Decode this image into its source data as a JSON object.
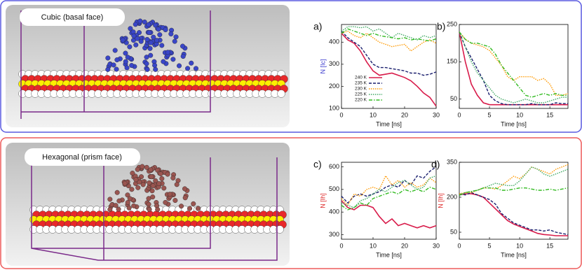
{
  "panels": [
    {
      "label": "Cubic (basal face)"
    },
    {
      "label": "Hexagonal (prism face)"
    }
  ],
  "chart_data": [
    {
      "type": "line",
      "label": "a)",
      "xlabel": "Time [ns]",
      "ylabel": "N [Ic]",
      "ylabel_color": "#3333cc",
      "x": [
        0,
        2,
        4,
        6,
        8,
        10,
        12,
        14,
        16,
        18,
        20,
        22,
        24,
        26,
        28,
        30
      ],
      "xlim": [
        0,
        30
      ],
      "xticks": [
        0,
        10,
        20,
        30
      ],
      "ylim": [
        100,
        480
      ],
      "yticks": [
        100,
        200,
        300,
        400
      ],
      "legend": true,
      "series": [
        {
          "name": "240 K",
          "color": "#d81b4a",
          "dash": "solid",
          "values": [
            440,
            410,
            395,
            360,
            310,
            270,
            250,
            255,
            260,
            250,
            240,
            225,
            200,
            170,
            150,
            110
          ]
        },
        {
          "name": "235 K",
          "color": "#1a1f6e",
          "dash": "dashed",
          "values": [
            450,
            420,
            400,
            380,
            340,
            300,
            285,
            285,
            280,
            275,
            270,
            260,
            260,
            250,
            255,
            265
          ]
        },
        {
          "name": "230 K",
          "color": "#ff9900",
          "dash": "dotted",
          "values": [
            440,
            450,
            430,
            420,
            440,
            420,
            400,
            390,
            380,
            385,
            390,
            360,
            380,
            400,
            410,
            395
          ]
        },
        {
          "name": "225 K",
          "color": "#44aa66",
          "dash": "dotted",
          "values": [
            450,
            470,
            470,
            465,
            470,
            450,
            460,
            440,
            420,
            440,
            430,
            420,
            410,
            430,
            420,
            430
          ]
        },
        {
          "name": "220 K",
          "color": "#33bb22",
          "dash": "dashdot",
          "values": [
            440,
            460,
            450,
            440,
            430,
            440,
            430,
            425,
            420,
            415,
            420,
            410,
            415,
            410,
            405,
            415
          ]
        }
      ]
    },
    {
      "type": "line",
      "label": "b)",
      "xlabel": "Time [ns]",
      "x": [
        0,
        1,
        2,
        3,
        4,
        5,
        6,
        7,
        8,
        9,
        10,
        11,
        12,
        13,
        14,
        15,
        16,
        17,
        18
      ],
      "xlim": [
        0,
        18
      ],
      "xticks": [
        0,
        5,
        10,
        15
      ],
      "ylim": [
        25,
        250
      ],
      "yticks": [
        50,
        150,
        250
      ],
      "legend": false,
      "series": [
        {
          "name": "240 K",
          "color": "#d81b4a",
          "dash": "solid",
          "values": [
            230,
            150,
            90,
            60,
            40,
            35,
            35,
            35,
            35,
            35,
            35,
            35,
            35,
            35,
            35,
            35,
            35,
            35,
            35
          ]
        },
        {
          "name": "235 K",
          "color": "#1a1f6e",
          "dash": "dashed",
          "values": [
            230,
            190,
            160,
            130,
            100,
            60,
            45,
            38,
            35,
            35,
            35,
            35,
            38,
            35,
            35,
            35,
            40,
            38,
            38
          ]
        },
        {
          "name": "230 K",
          "color": "#ff9900",
          "dash": "dotted",
          "values": [
            230,
            210,
            200,
            195,
            190,
            180,
            160,
            140,
            110,
            100,
            110,
            110,
            110,
            100,
            105,
            90,
            60,
            60,
            65
          ]
        },
        {
          "name": "225 K",
          "color": "#44aa66",
          "dash": "dotted",
          "values": [
            230,
            190,
            150,
            120,
            100,
            80,
            60,
            50,
            45,
            40,
            45,
            50,
            45,
            40,
            40,
            45,
            50,
            55,
            55
          ]
        },
        {
          "name": "220 K",
          "color": "#33bb22",
          "dash": "dashdot",
          "values": [
            230,
            210,
            200,
            200,
            195,
            190,
            170,
            140,
            120,
            100,
            80,
            60,
            55,
            60,
            65,
            60,
            65,
            60,
            60
          ]
        }
      ]
    },
    {
      "type": "line",
      "label": "c)",
      "xlabel": "Time [ns]",
      "ylabel": "N [Ih]",
      "ylabel_color": "#dd2222",
      "x": [
        0,
        2,
        4,
        6,
        8,
        10,
        12,
        14,
        16,
        18,
        20,
        22,
        24,
        26,
        28,
        30
      ],
      "xlim": [
        0,
        30
      ],
      "xticks": [
        0,
        10,
        20,
        30
      ],
      "ylim": [
        280,
        620
      ],
      "yticks": [
        300,
        400,
        500,
        600
      ],
      "legend": false,
      "series": [
        {
          "name": "240 K",
          "color": "#d81b4a",
          "dash": "solid",
          "values": [
            450,
            420,
            410,
            430,
            430,
            420,
            380,
            350,
            370,
            340,
            350,
            340,
            330,
            340,
            330,
            340
          ]
        },
        {
          "name": "235 K",
          "color": "#1a1f6e",
          "dash": "dashed",
          "values": [
            470,
            440,
            470,
            480,
            470,
            480,
            490,
            510,
            520,
            510,
            540,
            520,
            560,
            550,
            580,
            600
          ]
        },
        {
          "name": "230 K",
          "color": "#ff9900",
          "dash": "dotted",
          "values": [
            460,
            430,
            480,
            470,
            500,
            510,
            500,
            560,
            520,
            540,
            510,
            530,
            510,
            520,
            550,
            530
          ]
        },
        {
          "name": "225 K",
          "color": "#44aa66",
          "dash": "dotted",
          "values": [
            440,
            430,
            420,
            450,
            460,
            480,
            500,
            490,
            510,
            530,
            540,
            520,
            500,
            510,
            550,
            560
          ]
        },
        {
          "name": "220 K",
          "color": "#33bb22",
          "dash": "dashdot",
          "values": [
            430,
            410,
            420,
            440,
            430,
            460,
            470,
            480,
            490,
            480,
            500,
            490,
            500,
            490,
            510,
            500
          ]
        }
      ]
    },
    {
      "type": "line",
      "label": "d)",
      "xlabel": "Time [ns]",
      "ylabel": "N [Ih]",
      "ylabel_color": "#dd2222",
      "x": [
        0,
        1,
        2,
        3,
        4,
        5,
        6,
        7,
        8,
        9,
        10,
        11,
        12,
        13,
        14,
        15,
        16,
        17,
        18
      ],
      "xlim": [
        0,
        18
      ],
      "xticks": [
        0,
        5,
        10,
        15
      ],
      "ylim": [
        20,
        350
      ],
      "yticks": [
        50,
        200,
        350
      ],
      "legend": false,
      "series": [
        {
          "name": "240 K",
          "color": "#d81b4a",
          "dash": "solid",
          "values": [
            210,
            215,
            215,
            210,
            200,
            175,
            150,
            125,
            100,
            85,
            75,
            65,
            55,
            45,
            40,
            38,
            35,
            35,
            35
          ]
        },
        {
          "name": "235 K",
          "color": "#1a1f6e",
          "dash": "dashed",
          "values": [
            215,
            210,
            220,
            210,
            200,
            190,
            170,
            130,
            110,
            90,
            80,
            70,
            60,
            60,
            55,
            60,
            50,
            45,
            40
          ]
        },
        {
          "name": "230 K",
          "color": "#ff9900",
          "dash": "dotted",
          "values": [
            215,
            220,
            220,
            230,
            240,
            240,
            235,
            250,
            270,
            290,
            280,
            300,
            330,
            320,
            310,
            300,
            320,
            330,
            340
          ]
        },
        {
          "name": "225 K",
          "color": "#44aa66",
          "dash": "dotted",
          "values": [
            205,
            220,
            225,
            230,
            240,
            250,
            260,
            255,
            250,
            250,
            270,
            300,
            330,
            320,
            300,
            290,
            300,
            310,
            320
          ]
        },
        {
          "name": "220 K",
          "color": "#33bb22",
          "dash": "dashdot",
          "values": [
            210,
            220,
            225,
            230,
            240,
            240,
            240,
            230,
            230,
            235,
            240,
            240,
            235,
            230,
            230,
            235,
            230,
            235,
            240
          ]
        }
      ]
    }
  ]
}
